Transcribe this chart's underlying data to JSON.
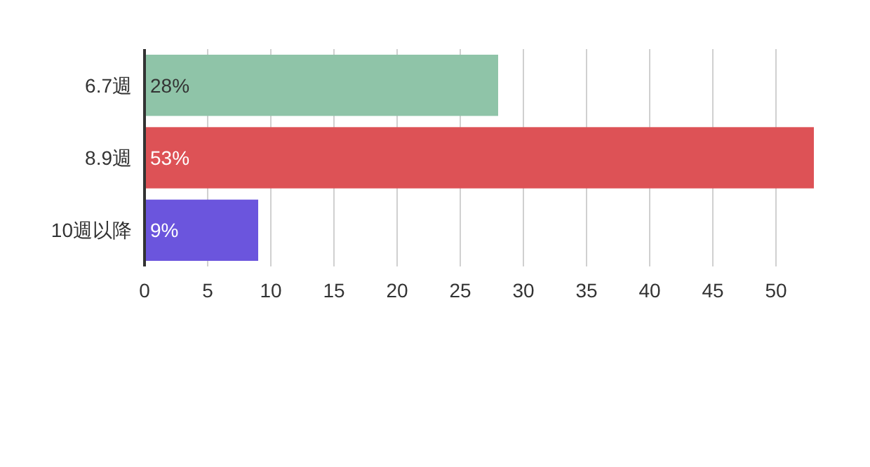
{
  "chart_data": {
    "type": "bar",
    "orientation": "horizontal",
    "categories": [
      "6.7週",
      "8.9週",
      "10週以降"
    ],
    "values": [
      28,
      53,
      9
    ],
    "colors": [
      "#8fc4a8",
      "#dd5256",
      "#6b55dd"
    ],
    "value_labels": [
      "28%",
      "53%",
      "9%"
    ],
    "xlim": [
      0,
      53
    ],
    "xticks": [
      0,
      5,
      10,
      15,
      20,
      25,
      30,
      35,
      40,
      45,
      50
    ],
    "grid": "x"
  }
}
